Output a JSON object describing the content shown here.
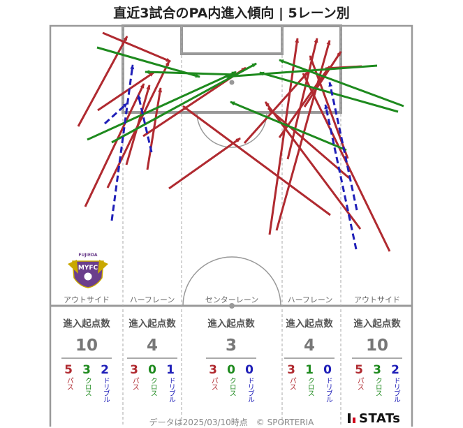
{
  "title": "直近3試合のPA内進入傾向 | 5レーン別",
  "colors": {
    "pass": "#b02a30",
    "cross": "#1e8a1e",
    "dribble": "#1f1fb8",
    "pitch_line": "#999999"
  },
  "logo": {
    "team_text": "FUJIEDA",
    "icon": "fujieda-myfc-crest-icon"
  },
  "lanes": [
    {
      "label": "アウトサイド",
      "head": "進入起点数",
      "total": "10",
      "pass": "5",
      "cross": "3",
      "dribble": "2"
    },
    {
      "label": "ハーフレーン",
      "head": "進入起点数",
      "total": "4",
      "pass": "3",
      "cross": "0",
      "dribble": "1"
    },
    {
      "label": "センターレーン",
      "head": "進入起点数",
      "total": "3",
      "pass": "3",
      "cross": "0",
      "dribble": "0"
    },
    {
      "label": "ハーフレーン",
      "head": "進入起点数",
      "total": "4",
      "pass": "3",
      "cross": "1",
      "dribble": "0"
    },
    {
      "label": "アウトサイド",
      "head": "進入起点数",
      "total": "10",
      "pass": "5",
      "cross": "3",
      "dribble": "2"
    }
  ],
  "legend_words": {
    "pass": "パス",
    "cross": "クロス",
    "dribble": "ドリブル"
  },
  "footer": "データは2025/03/10時点　© SPORTERIA",
  "brand": "STATs"
}
